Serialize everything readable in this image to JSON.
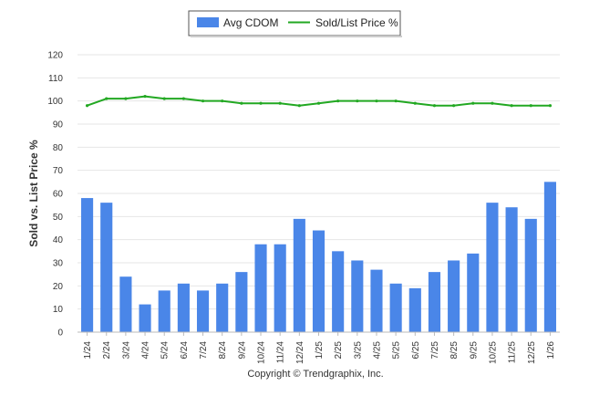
{
  "chart_data": {
    "type": "bar",
    "title": "",
    "xlabel": "",
    "ylabel": "Sold vs. List Price %",
    "ylim": [
      0,
      120
    ],
    "yticks": [
      0,
      10,
      20,
      30,
      40,
      50,
      60,
      70,
      80,
      90,
      100,
      110,
      120
    ],
    "grid": true,
    "legend_position": "top-center",
    "categories": [
      "1/24",
      "2/24",
      "3/24",
      "4/24",
      "5/24",
      "6/24",
      "7/24",
      "8/24",
      "9/24",
      "10/24",
      "11/24",
      "12/24",
      "1/25",
      "2/25",
      "3/25",
      "4/25",
      "5/25",
      "6/25",
      "7/25",
      "8/25",
      "9/25",
      "10/25",
      "11/25",
      "12/25",
      "1/26"
    ],
    "series": [
      {
        "name": "Avg CDOM",
        "type": "bar",
        "color": "#4a86e8",
        "values": [
          58,
          56,
          24,
          12,
          18,
          21,
          18,
          21,
          26,
          38,
          38,
          49,
          44,
          35,
          31,
          27,
          21,
          19,
          26,
          31,
          34,
          56,
          54,
          49,
          65
        ]
      },
      {
        "name": "Sold/List Price %",
        "type": "line",
        "color": "#22a822",
        "values": [
          98,
          101,
          101,
          102,
          101,
          101,
          100,
          100,
          99,
          99,
          99,
          98,
          99,
          100,
          100,
          100,
          100,
          99,
          98,
          98,
          99,
          99,
          98,
          98,
          98
        ]
      }
    ]
  },
  "footer": {
    "copyright": "Copyright © Trendgraphix, Inc."
  }
}
